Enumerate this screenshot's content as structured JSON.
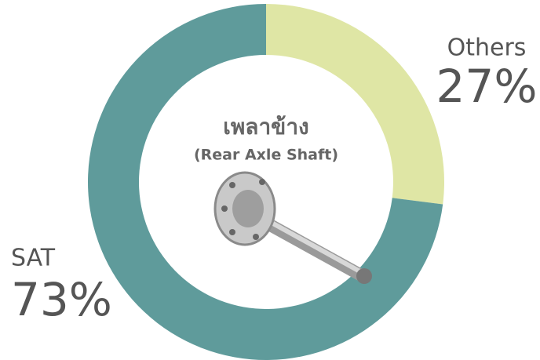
{
  "chart_data": {
    "type": "pie",
    "title": "เพลาข้าง",
    "subtitle": "(Rear Axle Shaft)",
    "categories": [
      "Others",
      "SAT"
    ],
    "values": [
      27,
      73
    ],
    "value_labels": [
      "27%",
      "73%"
    ],
    "colors": [
      "#dfe6a5",
      "#5f9b9b"
    ]
  }
}
